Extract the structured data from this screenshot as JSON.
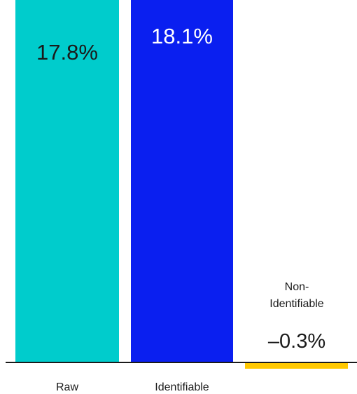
{
  "chart_data": {
    "type": "bar",
    "title": "",
    "xlabel": "",
    "ylabel": "",
    "ylim": [
      -0.3,
      18.1
    ],
    "grid": false,
    "legend": "none",
    "categories": [
      "Raw",
      "Identifiable",
      "Non-\nIdentifiable"
    ],
    "values": [
      17.8,
      18.1,
      -0.3
    ],
    "value_labels": [
      "17.8%",
      "18.1%",
      "–0.3%"
    ],
    "colors": [
      "#00cccc",
      "#0a1ff0",
      "#ffc800"
    ],
    "label_colors": [
      "#1a1a1a",
      "#ffffff",
      "#1a1a1a"
    ],
    "baseline_color": "#1a1a1a"
  }
}
